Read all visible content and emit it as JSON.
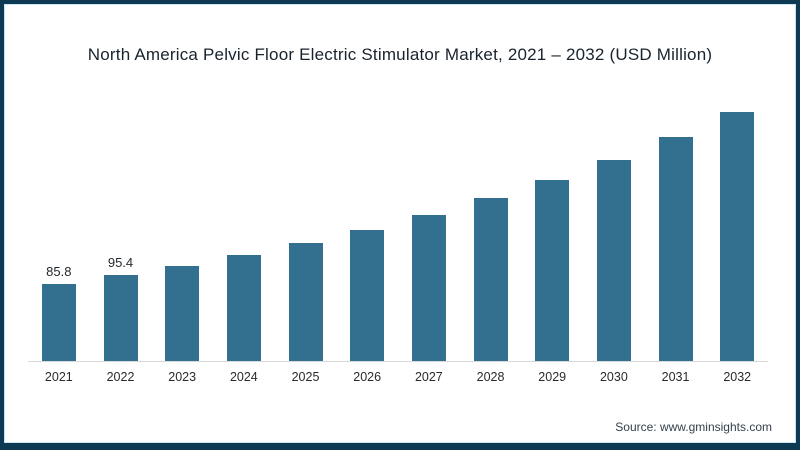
{
  "frame": {
    "border_color": "#0d3a52",
    "accent_line_color": "#c9e6f0",
    "background": "#ffffff"
  },
  "chart_data": {
    "type": "bar",
    "title": "North America Pelvic Floor Electric Stimulator Market, 2021 – 2032 (USD Million)",
    "xlabel": "",
    "ylabel": "",
    "unit": "USD Million",
    "categories": [
      "2021",
      "2022",
      "2023",
      "2024",
      "2025",
      "2026",
      "2027",
      "2028",
      "2029",
      "2030",
      "2031",
      "2032"
    ],
    "values": [
      85.8,
      95.4,
      106.1,
      117.9,
      131.1,
      145.8,
      162.1,
      180.2,
      200.4,
      222.8,
      247.7,
      275.4
    ],
    "data_labels": [
      "85.8",
      "95.4",
      "",
      "",
      "",
      "",
      "",
      "",
      "",
      "",
      "",
      ""
    ],
    "values_note": "Only 2021 (85.8) and 2022 (95.4) are labeled on the chart; remaining values estimated from bar heights (~11.2% annual growth).",
    "ylim": [
      0,
      300
    ],
    "grid": false,
    "legend": false,
    "bar_color": "#33708f",
    "axis_line_color": "#d9d9d9",
    "title_color": "#19232d",
    "tick_label_color": "#2a2a2a"
  },
  "source": {
    "text": "Source: www.gminsights.com"
  }
}
